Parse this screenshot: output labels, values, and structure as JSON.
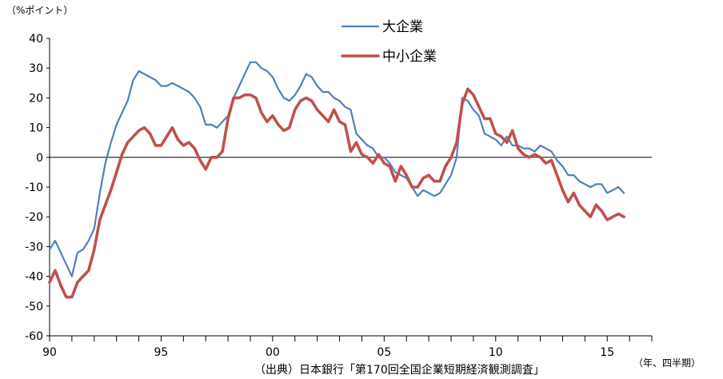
{
  "unit_label": "（%ポイント）",
  "source": "（出典）日本銀行「第170回全国企業短期経済観測調査」",
  "x_unit_label": "（年、四半期）",
  "chart_data": {
    "type": "line",
    "title": "",
    "ylabel": "（%ポイント）",
    "xlabel": "（年、四半期）",
    "ylim": [
      -60,
      40
    ],
    "yticks": [
      40,
      30,
      20,
      10,
      0,
      -10,
      -20,
      -30,
      -40,
      -50,
      -60
    ],
    "xlim": [
      1990.0,
      2017.0
    ],
    "xticks": [
      {
        "label": "90",
        "x": 1990
      },
      {
        "label": "95",
        "x": 1995
      },
      {
        "label": "00",
        "x": 2000
      },
      {
        "label": "05",
        "x": 2005
      },
      {
        "label": "10",
        "x": 2010
      },
      {
        "label": "15",
        "x": 2015
      }
    ],
    "zero_line": true,
    "grid": false,
    "legend_position": "top-center",
    "series": [
      {
        "name": "大企業",
        "color": "#4F81BD",
        "points": [
          [
            1990.0,
            -31
          ],
          [
            1990.25,
            -28
          ],
          [
            1990.5,
            -32
          ],
          [
            1990.75,
            -36
          ],
          [
            1991.0,
            -40
          ],
          [
            1991.25,
            -32
          ],
          [
            1991.5,
            -31
          ],
          [
            1991.75,
            -28
          ],
          [
            1992.0,
            -24
          ],
          [
            1992.25,
            -12
          ],
          [
            1992.5,
            -2
          ],
          [
            1992.75,
            5
          ],
          [
            1993.0,
            11
          ],
          [
            1993.25,
            15
          ],
          [
            1993.5,
            19
          ],
          [
            1993.75,
            26
          ],
          [
            1994.0,
            29
          ],
          [
            1994.25,
            28
          ],
          [
            1994.5,
            27
          ],
          [
            1994.75,
            26
          ],
          [
            1995.0,
            24
          ],
          [
            1995.25,
            24
          ],
          [
            1995.5,
            25
          ],
          [
            1995.75,
            24
          ],
          [
            1996.0,
            23
          ],
          [
            1996.25,
            22
          ],
          [
            1996.5,
            20
          ],
          [
            1996.75,
            17
          ],
          [
            1997.0,
            11
          ],
          [
            1997.25,
            11
          ],
          [
            1997.5,
            10
          ],
          [
            1997.75,
            12
          ],
          [
            1998.0,
            14
          ],
          [
            1998.25,
            20
          ],
          [
            1998.5,
            24
          ],
          [
            1998.75,
            28
          ],
          [
            1999.0,
            32
          ],
          [
            1999.25,
            32
          ],
          [
            1999.5,
            30
          ],
          [
            1999.75,
            29
          ],
          [
            2000.0,
            27
          ],
          [
            2000.25,
            23
          ],
          [
            2000.5,
            20
          ],
          [
            2000.75,
            19
          ],
          [
            2001.0,
            21
          ],
          [
            2001.25,
            24
          ],
          [
            2001.5,
            28
          ],
          [
            2001.75,
            27
          ],
          [
            2002.0,
            24
          ],
          [
            2002.25,
            22
          ],
          [
            2002.5,
            22
          ],
          [
            2002.75,
            20
          ],
          [
            2003.0,
            19
          ],
          [
            2003.25,
            17
          ],
          [
            2003.5,
            16
          ],
          [
            2003.75,
            8
          ],
          [
            2004.0,
            6
          ],
          [
            2004.25,
            4
          ],
          [
            2004.5,
            3
          ],
          [
            2004.75,
            0
          ],
          [
            2005.0,
            0
          ],
          [
            2005.25,
            -2
          ],
          [
            2005.5,
            -5
          ],
          [
            2005.75,
            -6
          ],
          [
            2006.0,
            -7
          ],
          [
            2006.25,
            -10
          ],
          [
            2006.5,
            -13
          ],
          [
            2006.75,
            -11
          ],
          [
            2007.0,
            -12
          ],
          [
            2007.25,
            -13
          ],
          [
            2007.5,
            -12
          ],
          [
            2007.75,
            -9
          ],
          [
            2008.0,
            -6
          ],
          [
            2008.25,
            0
          ],
          [
            2008.5,
            20
          ],
          [
            2008.75,
            19
          ],
          [
            2009.0,
            16
          ],
          [
            2009.25,
            14
          ],
          [
            2009.5,
            8
          ],
          [
            2009.75,
            7
          ],
          [
            2010.0,
            6
          ],
          [
            2010.25,
            4
          ],
          [
            2010.5,
            7
          ],
          [
            2010.75,
            4
          ],
          [
            2011.0,
            4
          ],
          [
            2011.25,
            3
          ],
          [
            2011.5,
            3
          ],
          [
            2011.75,
            2
          ],
          [
            2012.0,
            4
          ],
          [
            2012.25,
            3
          ],
          [
            2012.5,
            2
          ],
          [
            2012.75,
            -1
          ],
          [
            2013.0,
            -3
          ],
          [
            2013.25,
            -6
          ],
          [
            2013.5,
            -6
          ],
          [
            2013.75,
            -8
          ],
          [
            2014.0,
            -9
          ],
          [
            2014.25,
            -10
          ],
          [
            2014.5,
            -9
          ],
          [
            2014.75,
            -9
          ],
          [
            2015.0,
            -12
          ],
          [
            2015.25,
            -11
          ],
          [
            2015.5,
            -10
          ],
          [
            2015.75,
            -12
          ]
        ]
      },
      {
        "name": "中小企業",
        "color": "#C0504D",
        "points": [
          [
            1990.0,
            -42
          ],
          [
            1990.25,
            -38
          ],
          [
            1990.5,
            -43
          ],
          [
            1990.75,
            -47
          ],
          [
            1991.0,
            -47
          ],
          [
            1991.25,
            -42
          ],
          [
            1991.5,
            -40
          ],
          [
            1991.75,
            -38
          ],
          [
            1992.0,
            -31
          ],
          [
            1992.25,
            -21
          ],
          [
            1992.5,
            -16
          ],
          [
            1992.75,
            -11
          ],
          [
            1993.0,
            -5
          ],
          [
            1993.25,
            1
          ],
          [
            1993.5,
            5
          ],
          [
            1993.75,
            7
          ],
          [
            1994.0,
            9
          ],
          [
            1994.25,
            10
          ],
          [
            1994.5,
            8
          ],
          [
            1994.75,
            4
          ],
          [
            1995.0,
            4
          ],
          [
            1995.25,
            7
          ],
          [
            1995.5,
            10
          ],
          [
            1995.75,
            6
          ],
          [
            1996.0,
            4
          ],
          [
            1996.25,
            5
          ],
          [
            1996.5,
            3
          ],
          [
            1996.75,
            -1
          ],
          [
            1997.0,
            -4
          ],
          [
            1997.25,
            0
          ],
          [
            1997.5,
            0
          ],
          [
            1997.75,
            2
          ],
          [
            1998.0,
            13
          ],
          [
            1998.25,
            20
          ],
          [
            1998.5,
            20
          ],
          [
            1998.75,
            21
          ],
          [
            1999.0,
            21
          ],
          [
            1999.25,
            20
          ],
          [
            1999.5,
            15
          ],
          [
            1999.75,
            12
          ],
          [
            2000.0,
            14
          ],
          [
            2000.25,
            11
          ],
          [
            2000.5,
            9
          ],
          [
            2000.75,
            10
          ],
          [
            2001.0,
            16
          ],
          [
            2001.25,
            19
          ],
          [
            2001.5,
            20
          ],
          [
            2001.75,
            19
          ],
          [
            2002.0,
            16
          ],
          [
            2002.25,
            14
          ],
          [
            2002.5,
            12
          ],
          [
            2002.75,
            16
          ],
          [
            2003.0,
            12
          ],
          [
            2003.25,
            11
          ],
          [
            2003.5,
            2
          ],
          [
            2003.75,
            5
          ],
          [
            2004.0,
            1
          ],
          [
            2004.25,
            0
          ],
          [
            2004.5,
            -2
          ],
          [
            2004.75,
            1
          ],
          [
            2005.0,
            -2
          ],
          [
            2005.25,
            -3
          ],
          [
            2005.5,
            -8
          ],
          [
            2005.75,
            -3
          ],
          [
            2006.0,
            -6
          ],
          [
            2006.25,
            -10
          ],
          [
            2006.5,
            -10
          ],
          [
            2006.75,
            -7
          ],
          [
            2007.0,
            -6
          ],
          [
            2007.25,
            -8
          ],
          [
            2007.5,
            -8
          ],
          [
            2007.75,
            -3
          ],
          [
            2008.0,
            0
          ],
          [
            2008.25,
            5
          ],
          [
            2008.5,
            18
          ],
          [
            2008.75,
            23
          ],
          [
            2009.0,
            21
          ],
          [
            2009.25,
            17
          ],
          [
            2009.5,
            13
          ],
          [
            2009.75,
            13
          ],
          [
            2010.0,
            8
          ],
          [
            2010.25,
            7
          ],
          [
            2010.5,
            5
          ],
          [
            2010.75,
            9
          ],
          [
            2011.0,
            3
          ],
          [
            2011.25,
            1
          ],
          [
            2011.5,
            0
          ],
          [
            2011.75,
            1
          ],
          [
            2012.0,
            0
          ],
          [
            2012.25,
            -2
          ],
          [
            2012.5,
            -1
          ],
          [
            2012.75,
            -6
          ],
          [
            2013.0,
            -11
          ],
          [
            2013.25,
            -15
          ],
          [
            2013.5,
            -12
          ],
          [
            2013.75,
            -16
          ],
          [
            2014.0,
            -18
          ],
          [
            2014.25,
            -20
          ],
          [
            2014.5,
            -16
          ],
          [
            2014.75,
            -18
          ],
          [
            2015.0,
            -21
          ],
          [
            2015.25,
            -20
          ],
          [
            2015.5,
            -19
          ],
          [
            2015.75,
            -20
          ]
        ]
      }
    ]
  }
}
